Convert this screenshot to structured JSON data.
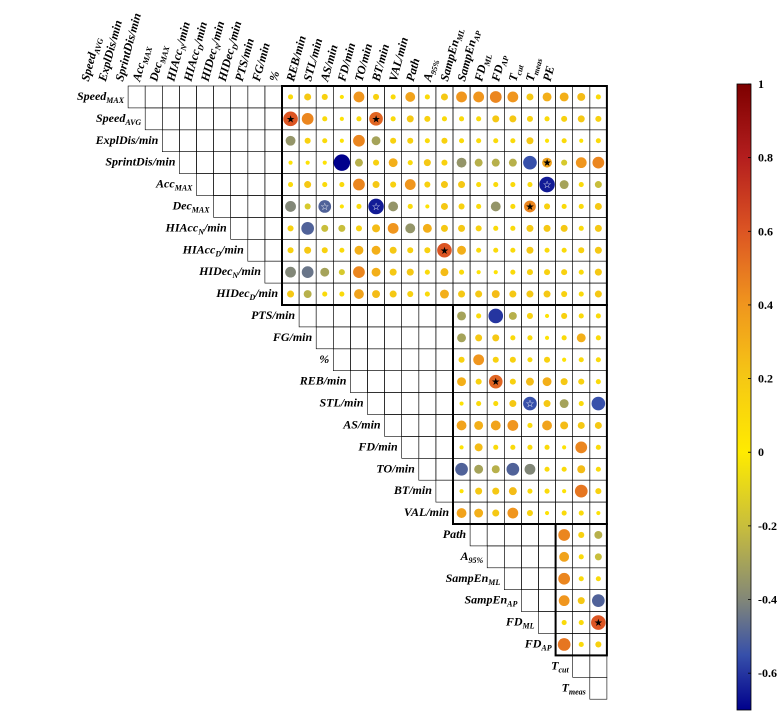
{
  "chart_data": {
    "type": "heatmap",
    "title": "",
    "variables": [
      {
        "base": "Speed",
        "sub": "MAX"
      },
      {
        "base": "Speed",
        "sub": "AVG"
      },
      {
        "base": "ExplDis/min",
        "sub": ""
      },
      {
        "base": "SprintDis/min",
        "sub": ""
      },
      {
        "base": "Acc",
        "sub": "MAX"
      },
      {
        "base": "Dec",
        "sub": "MAX"
      },
      {
        "base": "HIAcc",
        "sub": "N",
        "suffix": "/min"
      },
      {
        "base": "HIAcc",
        "sub": "D",
        "suffix": "/min"
      },
      {
        "base": "HIDec",
        "sub": "N",
        "suffix": "/min"
      },
      {
        "base": "HIDec",
        "sub": "D",
        "suffix": "/min"
      },
      {
        "base": "PTS/min",
        "sub": ""
      },
      {
        "base": "FG/min",
        "sub": ""
      },
      {
        "base": "%",
        "sub": ""
      },
      {
        "base": "REB/min",
        "sub": ""
      },
      {
        "base": "STL/min",
        "sub": ""
      },
      {
        "base": "AS/min",
        "sub": ""
      },
      {
        "base": "FD/min",
        "sub": ""
      },
      {
        "base": "TO/min",
        "sub": ""
      },
      {
        "base": "BT/min",
        "sub": ""
      },
      {
        "base": "VAL/min",
        "sub": ""
      },
      {
        "base": "Path",
        "sub": ""
      },
      {
        "base": "A",
        "sub": "95%"
      },
      {
        "base": "SampEn",
        "sub": "ML"
      },
      {
        "base": "SampEn",
        "sub": "AP"
      },
      {
        "base": "FD",
        "sub": "ML"
      },
      {
        "base": "FD",
        "sub": "AP"
      },
      {
        "base": "T",
        "sub": "cut"
      },
      {
        "base": "T",
        "sub": "meas"
      },
      {
        "base": "PE",
        "sub": ""
      }
    ],
    "blocks": [
      {
        "rows": [
          0,
          9
        ],
        "cols": [
          10,
          28
        ]
      },
      {
        "rows": [
          10,
          19
        ],
        "cols": [
          20,
          28
        ]
      },
      {
        "rows": [
          20,
          25
        ],
        "cols": [
          26,
          28
        ]
      }
    ],
    "rows": [
      [
        0.1,
        0.2,
        0.15,
        0.05,
        0.4,
        0.15,
        0.1,
        0.35,
        0.1,
        0.2,
        0.4,
        0.4,
        0.45,
        0.4,
        0.2,
        0.3,
        0.3,
        0.25,
        0.1
      ],
      [
        0.6,
        0.45,
        0.1,
        0.05,
        0.1,
        0.55,
        0.1,
        0.2,
        0.15,
        0.1,
        0.1,
        0.1,
        0.2,
        0.2,
        0.15,
        0.1,
        0.15,
        0.2,
        0.15
      ],
      [
        -0.35,
        0.15,
        0.1,
        0.05,
        0.45,
        -0.3,
        0.15,
        0.15,
        0.1,
        0.15,
        0.1,
        0.1,
        0.1,
        0.1,
        0.2,
        0.05,
        0.1,
        0.05,
        0.1
      ],
      [
        0.05,
        0.05,
        0.05,
        -0.7,
        -0.25,
        0.15,
        0.3,
        0.1,
        0.2,
        0.15,
        -0.35,
        -0.25,
        -0.25,
        -0.25,
        -0.55,
        0.35,
        -0.15,
        0.4,
        0.45
      ],
      [
        0.1,
        0.2,
        0.1,
        0.1,
        0.45,
        0.2,
        0.15,
        0.4,
        0.15,
        0.2,
        0.2,
        0.1,
        0.1,
        0.1,
        0.1,
        -0.65,
        -0.3,
        0.1,
        -0.2
      ],
      [
        -0.4,
        -0.15,
        -0.5,
        0.05,
        0.1,
        -0.65,
        -0.35,
        0.1,
        0.05,
        0.2,
        0.15,
        0.1,
        -0.35,
        0.1,
        0.45,
        0.15,
        0.1,
        0.1,
        0.2
      ],
      [
        0.15,
        -0.5,
        -0.2,
        -0.2,
        0.15,
        0.25,
        0.4,
        -0.35,
        0.3,
        0.2,
        0.2,
        0.15,
        0.1,
        0.1,
        0.2,
        0.2,
        0.2,
        0.1,
        0.2
      ],
      [
        0.15,
        0.2,
        0.15,
        0.1,
        0.3,
        0.3,
        0.2,
        0.15,
        0.15,
        0.6,
        0.3,
        0.1,
        0.1,
        0.1,
        0.2,
        0.1,
        0.1,
        0.15,
        0.2
      ],
      [
        -0.4,
        -0.45,
        -0.3,
        -0.15,
        0.45,
        0.3,
        0.2,
        0.2,
        0.1,
        0.25,
        0.1,
        0.05,
        0.05,
        0.1,
        0.15,
        0.15,
        0.15,
        0.1,
        0.2
      ],
      [
        0.2,
        -0.25,
        0.1,
        0.1,
        0.35,
        0.25,
        0.2,
        0.15,
        0.1,
        0.3,
        0.2,
        0.2,
        0.25,
        0.2,
        0.2,
        0.2,
        0.15,
        0.1,
        0.2
      ],
      [
        -0.3,
        0.1,
        -0.6,
        -0.25,
        0.15,
        0.05,
        0.15,
        0.1,
        0.1
      ],
      [
        -0.3,
        0.2,
        0.2,
        0.1,
        0.1,
        0.05,
        0.1,
        0.3,
        0.1
      ],
      [
        0.15,
        0.4,
        0.15,
        0.15,
        0.1,
        0.15,
        0.05,
        0.1,
        0.1
      ],
      [
        0.3,
        0.15,
        0.55,
        0.15,
        0.25,
        0.3,
        0.2,
        0.15,
        0.1
      ],
      [
        0.05,
        0.1,
        0.1,
        0.2,
        -0.55,
        0.2,
        -0.3,
        0.1,
        -0.55
      ],
      [
        0.35,
        0.3,
        0.35,
        0.4,
        0.1,
        0.35,
        0.25,
        0.2,
        0.2
      ],
      [
        0.05,
        0.25,
        0.1,
        0.1,
        0.1,
        0.1,
        0.05,
        0.45,
        0.1
      ],
      [
        -0.5,
        -0.3,
        -0.25,
        -0.5,
        -0.4,
        0.1,
        0.1,
        0.25,
        0.1
      ],
      [
        0.05,
        0.2,
        0.2,
        0.25,
        0.1,
        0.1,
        0.05,
        0.5,
        0.15
      ],
      [
        0.35,
        0.3,
        0.2,
        0.4,
        0.15,
        0.05,
        0.1,
        0.1,
        0.05
      ],
      [
        0.45,
        0.15,
        -0.25
      ],
      [
        0.35,
        0.1,
        -0.2
      ],
      [
        0.45,
        0.1,
        0.1
      ],
      [
        0.4,
        0.2,
        -0.5
      ],
      [
        0.1,
        0.1,
        0.6
      ],
      [
        0.5,
        0.1,
        0.15
      ]
    ],
    "significant": [
      [
        1,
        10
      ],
      [
        1,
        15
      ],
      [
        3,
        25
      ],
      [
        4,
        25
      ],
      [
        5,
        12
      ],
      [
        5,
        15
      ],
      [
        5,
        24
      ],
      [
        7,
        19
      ],
      [
        13,
        22
      ],
      [
        14,
        24
      ],
      [
        24,
        28
      ]
    ],
    "colorbar": {
      "min": -0.7,
      "max": 1,
      "ticks": [
        1,
        0.8,
        0.6,
        0.4,
        0.2,
        0,
        -0.2,
        -0.4,
        -0.6
      ]
    },
    "colorbar_ticks": [
      "1",
      "0.8",
      "0.6",
      "0.4",
      "0.2",
      "0",
      "-0.2",
      "-0.4",
      "-0.6"
    ]
  }
}
